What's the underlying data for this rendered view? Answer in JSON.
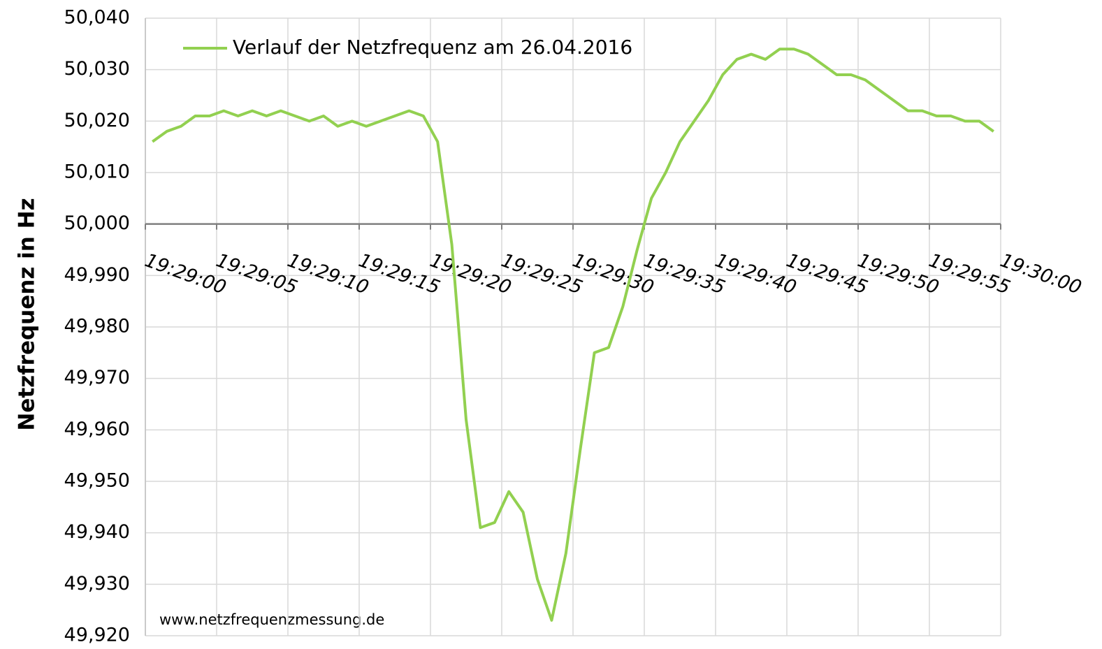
{
  "chart_data": {
    "type": "line",
    "ylabel": "Netzfrequenz in Hz",
    "annotation": "www.netzfrequenzmessung.de",
    "x": [
      0.5,
      1.5,
      2.5,
      3.5,
      4.5,
      5.5,
      6.5,
      7.5,
      8.5,
      9.5,
      10.5,
      11.5,
      12.5,
      13.5,
      14.5,
      15.5,
      16.5,
      17.5,
      18.5,
      19.5,
      20.5,
      21.5,
      22.5,
      23.5,
      24.5,
      25.5,
      26.5,
      27.5,
      28.5,
      29.5,
      30.5,
      31.5,
      32.5,
      33.5,
      34.5,
      35.5,
      36.5,
      37.5,
      38.5,
      39.5,
      40.5,
      41.5,
      42.5,
      43.5,
      44.5,
      45.5,
      46.5,
      47.5,
      48.5,
      49.5,
      50.5,
      51.5,
      52.5,
      53.5,
      54.5,
      55.5,
      56.5,
      57.5,
      58.5,
      59.5
    ],
    "series": [
      {
        "name": "Verlauf der Netzfrequenz am 26.04.2016",
        "color": "#92d050",
        "values": [
          50.016,
          50.018,
          50.019,
          50.021,
          50.021,
          50.022,
          50.021,
          50.022,
          50.021,
          50.022,
          50.021,
          50.02,
          50.021,
          50.019,
          50.02,
          50.019,
          50.02,
          50.021,
          50.022,
          50.021,
          50.016,
          49.996,
          49.962,
          49.941,
          49.942,
          49.948,
          49.944,
          49.931,
          49.923,
          49.936,
          49.956,
          49.975,
          49.976,
          49.984,
          49.995,
          50.005,
          50.01,
          50.016,
          50.02,
          50.024,
          50.029,
          50.032,
          50.033,
          50.032,
          50.034,
          50.034,
          50.033,
          50.031,
          50.029,
          50.029,
          50.028,
          50.026,
          50.024,
          50.022,
          50.022,
          50.021,
          50.021,
          50.02,
          50.02,
          50.018
        ]
      }
    ],
    "xlim": [
      0,
      60
    ],
    "xticks": [
      {
        "value": 0,
        "label": "19:29:00"
      },
      {
        "value": 5,
        "label": "19:29:05"
      },
      {
        "value": 10,
        "label": "19:29:10"
      },
      {
        "value": 15,
        "label": "19:29:15"
      },
      {
        "value": 20,
        "label": "19:29:20"
      },
      {
        "value": 25,
        "label": "19:29:25"
      },
      {
        "value": 30,
        "label": "19:29:30"
      },
      {
        "value": 35,
        "label": "19:29:35"
      },
      {
        "value": 40,
        "label": "19:29:40"
      },
      {
        "value": 45,
        "label": "19:29:45"
      },
      {
        "value": 50,
        "label": "19:29:50"
      },
      {
        "value": 55,
        "label": "19:29:55"
      },
      {
        "value": 60,
        "label": "19:30:00"
      }
    ],
    "ylim": [
      49.92,
      50.04
    ],
    "yticks": [
      {
        "value": 49.92,
        "label": "49,920"
      },
      {
        "value": 49.93,
        "label": "49,930"
      },
      {
        "value": 49.94,
        "label": "49,940"
      },
      {
        "value": 49.95,
        "label": "49,950"
      },
      {
        "value": 49.96,
        "label": "49,960"
      },
      {
        "value": 49.97,
        "label": "49,970"
      },
      {
        "value": 49.98,
        "label": "49,980"
      },
      {
        "value": 49.99,
        "label": "49,990"
      },
      {
        "value": 50.0,
        "label": "50,000"
      },
      {
        "value": 50.01,
        "label": "50,010"
      },
      {
        "value": 50.02,
        "label": "50,020"
      },
      {
        "value": 50.03,
        "label": "50,030"
      },
      {
        "value": 50.04,
        "label": "50,040"
      }
    ],
    "xaxis_at": 50.0,
    "grid": true,
    "legend": "top-left"
  }
}
